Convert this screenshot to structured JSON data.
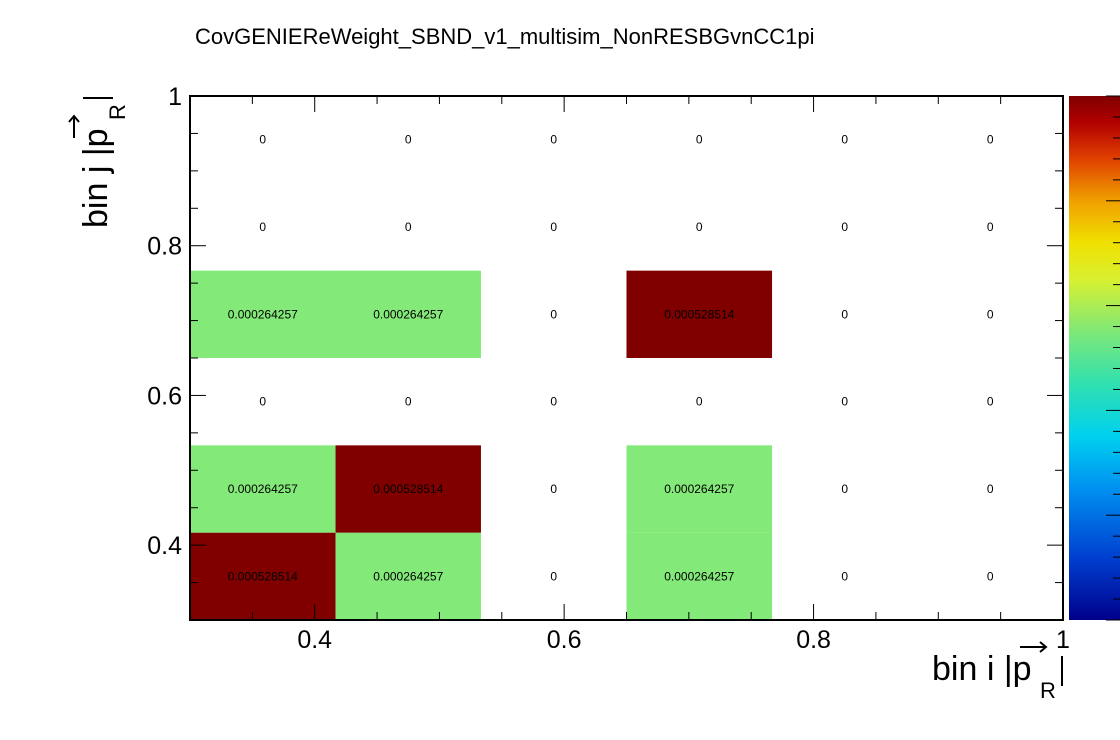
{
  "chart_data": {
    "type": "heatmap",
    "title": "CovGENIEReWeight_SBND_v1_multisim_NonRESBGvnCC1pi",
    "xlabel": "bin i |p",
    "xlabel_sub": "R",
    "ylabel": "bin j |p",
    "ylabel_sub": "R",
    "xlim": [
      0.3,
      1.0
    ],
    "ylim": [
      0.3,
      1.0
    ],
    "xticks": [
      "0.4",
      "0.6",
      "0.8",
      "1"
    ],
    "yticks": [
      "0.4",
      "0.6",
      "0.8",
      "1"
    ],
    "x_bin_edges": [
      0.3,
      0.4167,
      0.5333,
      0.65,
      0.7667,
      0.8833,
      1.0
    ],
    "y_bin_edges": [
      0.3,
      0.4167,
      0.5333,
      0.65,
      0.7667,
      0.8833,
      1.0
    ],
    "zlim": [
      0,
      0.000528514
    ],
    "colormap": "rainbow",
    "rows_bottom_to_top": [
      [
        "0.000528514",
        "0.000264257",
        "0",
        "0.000264257",
        "0",
        "0"
      ],
      [
        "0.000264257",
        "0.000528514",
        "0",
        "0.000264257",
        "0",
        "0"
      ],
      [
        "0",
        "0",
        "0",
        "0",
        "0",
        "0"
      ],
      [
        "0.000264257",
        "0.000264257",
        "0",
        "0.000528514",
        "0",
        "0"
      ],
      [
        "0",
        "0",
        "0",
        "0",
        "0",
        "0"
      ],
      [
        "0",
        "0",
        "0",
        "0",
        "0",
        "0"
      ]
    ],
    "colors": {
      "high": "#800000",
      "mid": "#83e978",
      "zero": "#ffffff"
    }
  }
}
